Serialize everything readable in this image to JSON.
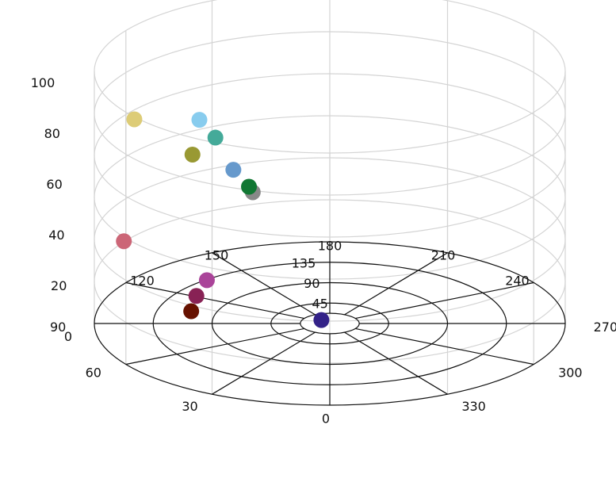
{
  "chart_data": {
    "type": "scatter",
    "projection": "3d-cylindrical",
    "title": "",
    "grid": true,
    "legend": "none",
    "angle_ticks": [
      "0",
      "30",
      "60",
      "90",
      "120",
      "150",
      "180",
      "210",
      "240",
      "270",
      "300",
      "330"
    ],
    "radial_ticks": [
      "45",
      "90",
      "135"
    ],
    "radial_range": [
      0,
      180
    ],
    "z_ticks": [
      "0",
      "20",
      "40",
      "60",
      "80",
      "100"
    ],
    "z_range": [
      0,
      120
    ],
    "points": [
      {
        "theta": 85,
        "r": 150,
        "z": 100,
        "color": "#ddcc77"
      },
      {
        "theta": 91,
        "r": 105,
        "z": 80,
        "color": "#999933"
      },
      {
        "theta": 119,
        "r": 114,
        "z": 85,
        "color": "#88ccee"
      },
      {
        "theta": 119,
        "r": 100,
        "z": 78,
        "color": "#44aa99"
      },
      {
        "theta": 101,
        "r": 60,
        "z": 60,
        "color": "#888888"
      },
      {
        "theta": 118,
        "r": 70,
        "z": 58,
        "color": "#117733"
      },
      {
        "theta": 125,
        "r": 90,
        "z": 62,
        "color": "#6699cc"
      },
      {
        "theta": 61,
        "r": 180,
        "z": 58,
        "color": "#cc6677"
      },
      {
        "theta": 70,
        "r": 100,
        "z": 28,
        "color": "#aa4499"
      },
      {
        "theta": 68,
        "r": 110,
        "z": 22,
        "color": "#882255"
      },
      {
        "theta": 62,
        "r": 120,
        "z": 18,
        "color": "#661100"
      },
      {
        "theta": 140,
        "r": 10,
        "z": 0,
        "color": "#332288"
      }
    ]
  }
}
